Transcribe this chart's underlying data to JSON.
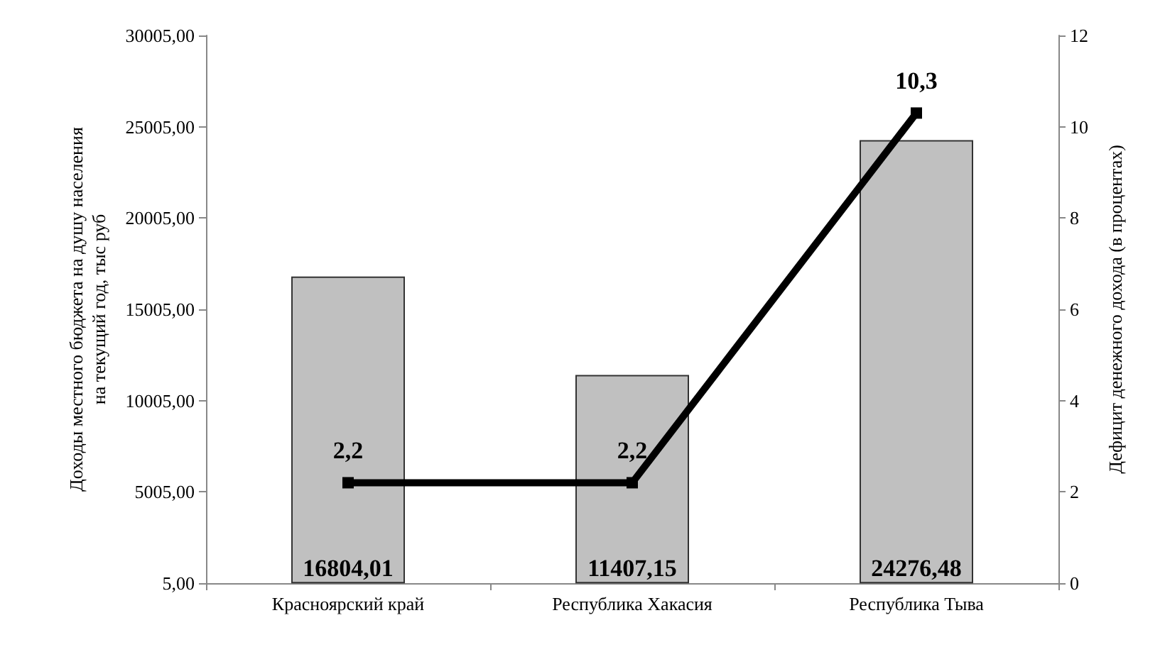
{
  "chart_data": {
    "type": "bar",
    "categories": [
      "Красноярский край",
      "Республика Хакасия",
      "Республика Тыва"
    ],
    "ylabel": "Доходы местного бюджета на душу населения на текущий год, тыс руб",
    "y2label": "Дефицит денежного дохода (в процентах)",
    "ylim": [
      5,
      30005
    ],
    "yticks": [
      {
        "value": 5,
        "label": "5,00"
      },
      {
        "value": 5005,
        "label": "5005,00"
      },
      {
        "value": 10005,
        "label": "10005,00"
      },
      {
        "value": 15005,
        "label": "15005,00"
      },
      {
        "value": 20005,
        "label": "20005,00"
      },
      {
        "value": 25005,
        "label": "25005,00"
      },
      {
        "value": 30005,
        "label": "30005,00"
      }
    ],
    "y2lim": [
      0,
      12
    ],
    "y2ticks": [
      0,
      2,
      4,
      6,
      8,
      10,
      12
    ],
    "grid": false,
    "series": [
      {
        "color": "#c0c0c0",
        "values": [
          16804.01,
          11407.15,
          24276.48
        ],
        "value_labels": [
          "16804,01",
          "11407,15",
          "24276,48"
        ]
      },
      {
        "type": "line",
        "axis": "y2",
        "color": "#000000",
        "marker": "square",
        "line_style": "solid",
        "values": [
          2.2,
          2.2,
          10.3
        ],
        "value_labels": [
          "2,2",
          "2,2",
          "10,3"
        ]
      }
    ]
  }
}
